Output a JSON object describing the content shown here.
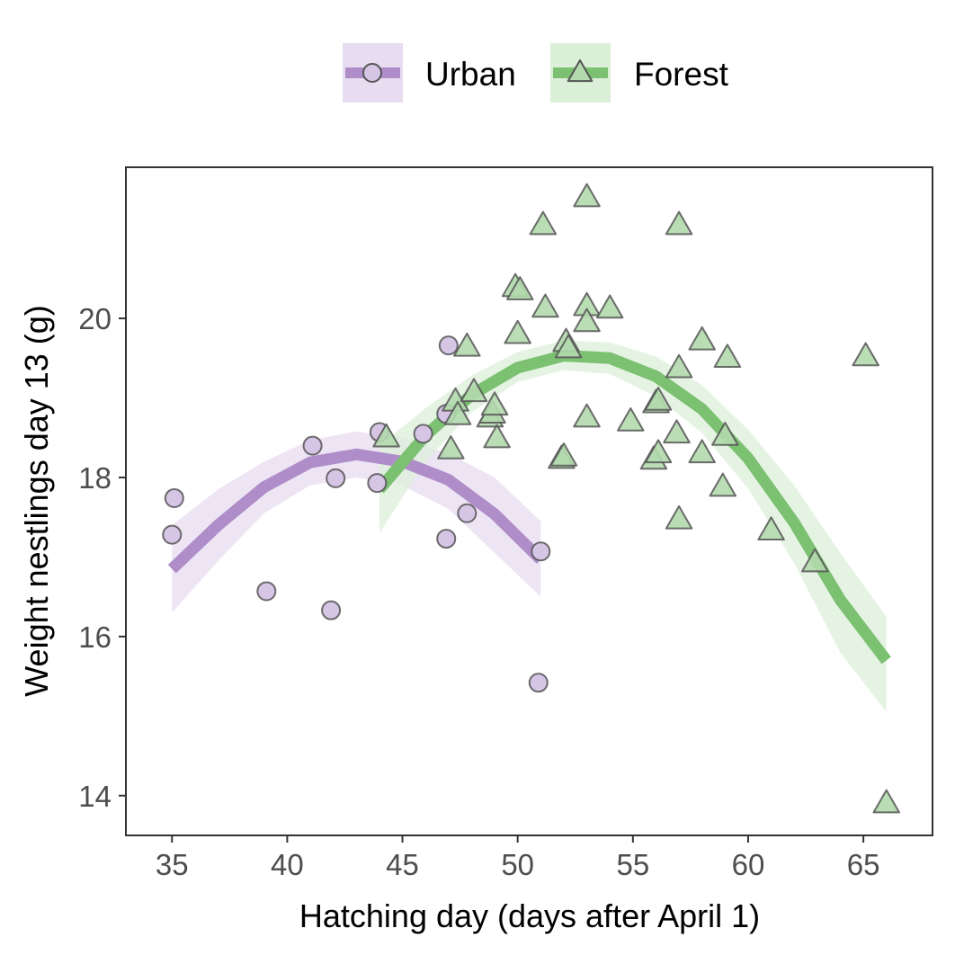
{
  "chart_data": {
    "type": "scatter",
    "xlabel": "Hatching day (days after April 1)",
    "ylabel": "Weight nestlings day 13 (g)",
    "xlim": [
      33,
      68
    ],
    "ylim": [
      13.5,
      21.9
    ],
    "x_ticks": [
      35,
      40,
      45,
      50,
      55,
      60,
      65
    ],
    "y_ticks": [
      14,
      16,
      18,
      20
    ],
    "legend_position": "top",
    "grid": false,
    "series": [
      {
        "name": "Urban",
        "marker": "circle",
        "point_fill": "#d7c5e6",
        "line_color": "#af8dc9",
        "band_color": "#e8dcf0",
        "points": [
          {
            "x": 35,
            "y": 17.28
          },
          {
            "x": 35.1,
            "y": 17.74
          },
          {
            "x": 39.1,
            "y": 16.57
          },
          {
            "x": 41.1,
            "y": 18.4
          },
          {
            "x": 41.9,
            "y": 16.33
          },
          {
            "x": 42.1,
            "y": 17.99
          },
          {
            "x": 43.9,
            "y": 17.93
          },
          {
            "x": 44,
            "y": 18.57
          },
          {
            "x": 45.9,
            "y": 18.55
          },
          {
            "x": 46.9,
            "y": 17.23
          },
          {
            "x": 46.9,
            "y": 18.8
          },
          {
            "x": 47,
            "y": 19.66
          },
          {
            "x": 47.8,
            "y": 17.55
          },
          {
            "x": 50.9,
            "y": 15.42
          },
          {
            "x": 51,
            "y": 17.07
          }
        ],
        "fit": {
          "x": [
            35,
            37,
            39,
            41,
            43,
            45,
            47,
            49,
            51
          ],
          "y": [
            16.85,
            17.4,
            17.88,
            18.19,
            18.29,
            18.2,
            17.97,
            17.54,
            16.97
          ],
          "lower": [
            16.3,
            16.95,
            17.55,
            17.9,
            18.0,
            17.9,
            17.6,
            17.05,
            16.5
          ],
          "upper": [
            17.4,
            17.85,
            18.2,
            18.47,
            18.58,
            18.5,
            18.3,
            18.0,
            17.45
          ]
        }
      },
      {
        "name": "Forest",
        "marker": "triangle",
        "point_fill": "#b3d9ad",
        "line_color": "#7cc072",
        "band_color": "#dcefd9",
        "points": [
          {
            "x": 44.3,
            "y": 18.5
          },
          {
            "x": 47.1,
            "y": 18.35
          },
          {
            "x": 47.3,
            "y": 18.95
          },
          {
            "x": 47.4,
            "y": 18.78
          },
          {
            "x": 47.8,
            "y": 19.64
          },
          {
            "x": 48.1,
            "y": 19.07
          },
          {
            "x": 48.8,
            "y": 18.75
          },
          {
            "x": 48.9,
            "y": 18.8
          },
          {
            "x": 49,
            "y": 18.9
          },
          {
            "x": 49.1,
            "y": 18.49
          },
          {
            "x": 49.9,
            "y": 20.39
          },
          {
            "x": 50,
            "y": 19.8
          },
          {
            "x": 50.1,
            "y": 20.35
          },
          {
            "x": 51.1,
            "y": 21.17
          },
          {
            "x": 51.2,
            "y": 20.13
          },
          {
            "x": 51.9,
            "y": 18.23
          },
          {
            "x": 52,
            "y": 18.26
          },
          {
            "x": 52.1,
            "y": 19.7
          },
          {
            "x": 52.2,
            "y": 19.62
          },
          {
            "x": 53,
            "y": 21.52
          },
          {
            "x": 53,
            "y": 20.15
          },
          {
            "x": 53,
            "y": 19.95
          },
          {
            "x": 53,
            "y": 18.75
          },
          {
            "x": 54,
            "y": 20.12
          },
          {
            "x": 54.9,
            "y": 18.7
          },
          {
            "x": 55.9,
            "y": 18.22
          },
          {
            "x": 56,
            "y": 18.93
          },
          {
            "x": 56.1,
            "y": 18.96
          },
          {
            "x": 56.1,
            "y": 18.3
          },
          {
            "x": 56.9,
            "y": 18.55
          },
          {
            "x": 57,
            "y": 19.37
          },
          {
            "x": 57,
            "y": 21.17
          },
          {
            "x": 57,
            "y": 17.47
          },
          {
            "x": 58,
            "y": 19.72
          },
          {
            "x": 58,
            "y": 18.3
          },
          {
            "x": 58.9,
            "y": 17.88
          },
          {
            "x": 59,
            "y": 18.52
          },
          {
            "x": 59.1,
            "y": 19.5
          },
          {
            "x": 61,
            "y": 17.33
          },
          {
            "x": 62.9,
            "y": 16.93
          },
          {
            "x": 65.1,
            "y": 19.52
          },
          {
            "x": 66,
            "y": 13.9
          }
        ],
        "fit": {
          "x": [
            44,
            46,
            48,
            50,
            52,
            54,
            56,
            58,
            60,
            62,
            64,
            66
          ],
          "y": [
            17.85,
            18.53,
            19.04,
            19.38,
            19.53,
            19.5,
            19.27,
            18.86,
            18.24,
            17.43,
            16.46,
            15.7
          ],
          "lower": [
            17.3,
            18.2,
            18.82,
            19.2,
            19.35,
            19.3,
            19.02,
            18.56,
            17.86,
            16.92,
            15.8,
            15.05
          ],
          "upper": [
            18.4,
            18.87,
            19.28,
            19.58,
            19.72,
            19.7,
            19.52,
            19.16,
            18.6,
            17.9,
            17.05,
            16.25
          ]
        }
      }
    ]
  }
}
